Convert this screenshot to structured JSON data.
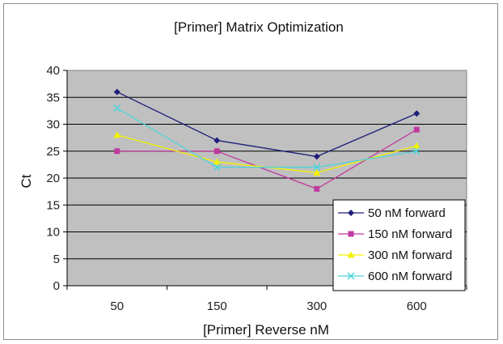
{
  "chart_data": {
    "type": "line",
    "title": "[Primer] Matrix Optimization",
    "xlabel": "[Primer] Reverse nM",
    "ylabel": "Ct",
    "categories": [
      "50",
      "150",
      "300",
      "600"
    ],
    "ylim": [
      0,
      40
    ],
    "yticks": [
      0,
      5,
      10,
      15,
      20,
      25,
      30,
      35,
      40
    ],
    "grid": true,
    "legend_position": "bottom-right",
    "plot_background": "#c0c0c0",
    "series": [
      {
        "name": "50 nM forward",
        "values": [
          36,
          27,
          24,
          32
        ],
        "color": "#1f1f7a",
        "marker": "diamond"
      },
      {
        "name": "150 nM forward",
        "values": [
          25,
          25,
          18,
          29
        ],
        "color": "#c0399f",
        "marker": "square"
      },
      {
        "name": "300 nM forward",
        "values": [
          28,
          23,
          21,
          26
        ],
        "color": "#f2f200",
        "marker": "triangle"
      },
      {
        "name": "600 nM forward",
        "values": [
          33,
          22,
          22,
          25
        ],
        "color": "#4fd3d9",
        "marker": "x"
      }
    ]
  }
}
